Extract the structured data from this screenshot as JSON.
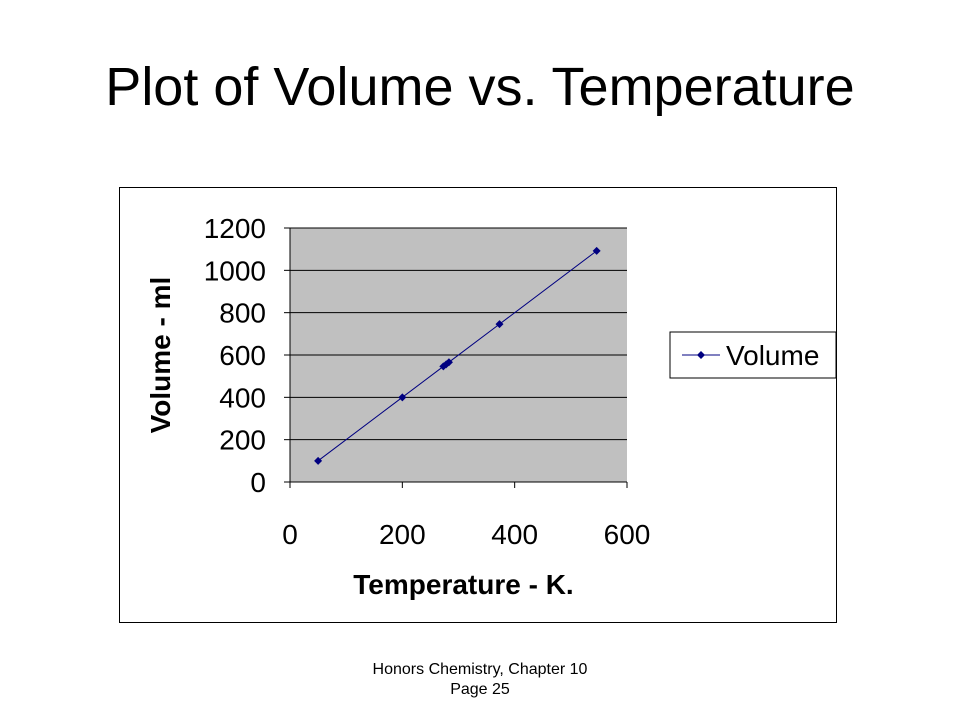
{
  "slide": {
    "title": "Plot of Volume vs. Temperature",
    "footer_line1": "Honors Chemistry, Chapter 10",
    "footer_line2": "Page 25"
  },
  "chart_data": {
    "type": "scatter",
    "title": "",
    "xlabel": "Temperature - K.",
    "ylabel": "Volume - ml",
    "xlim": [
      0,
      600
    ],
    "ylim": [
      0,
      1200
    ],
    "xticks": [
      0,
      200,
      400,
      600
    ],
    "yticks": [
      0,
      200,
      400,
      600,
      800,
      1000,
      1200
    ],
    "grid": "horizontal",
    "plot_background": "#c0c0c0",
    "legend": "right",
    "series": [
      {
        "name": "Volume",
        "color": "#000080",
        "marker": "diamond",
        "line": true,
        "x": [
          50,
          200,
          273,
          278,
          283,
          373,
          546
        ],
        "y": [
          100,
          400,
          546,
          556,
          566,
          746,
          1092
        ]
      }
    ]
  }
}
